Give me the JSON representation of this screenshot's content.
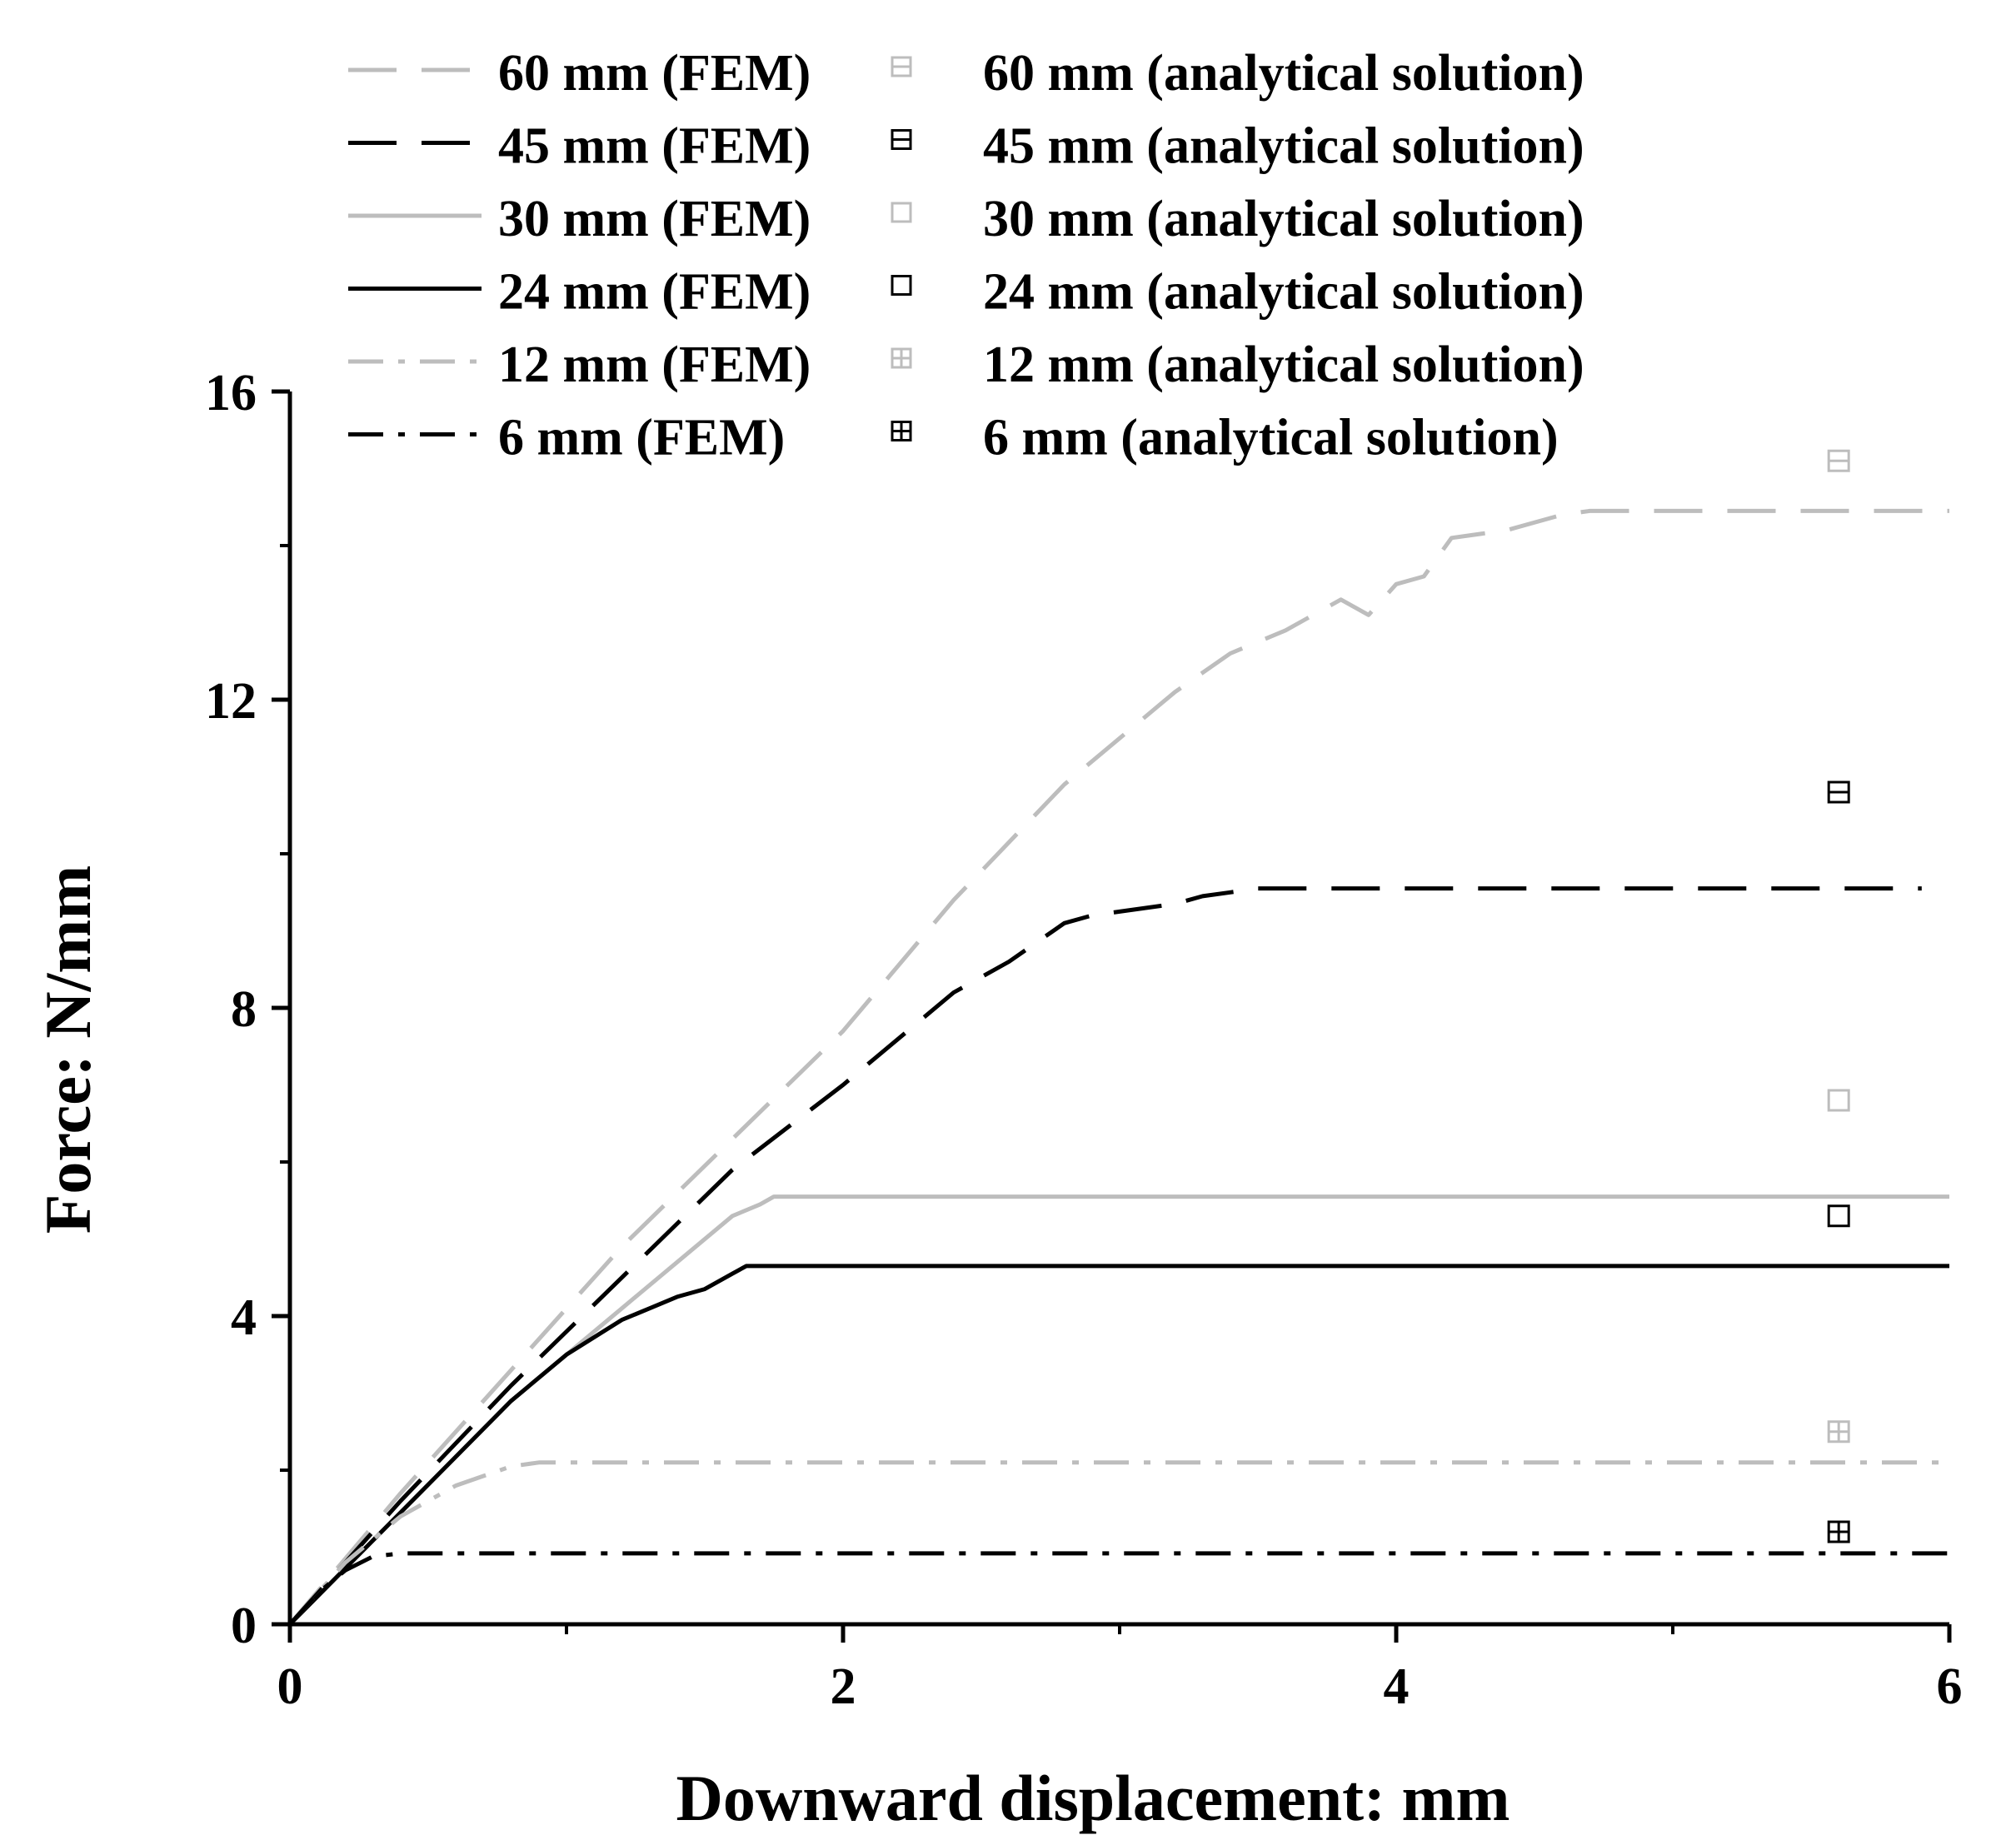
{
  "chart_data": {
    "type": "line",
    "title": "",
    "xlabel": "Downward displacement: mm",
    "ylabel": "Force: N/mm",
    "xlim": [
      0,
      6
    ],
    "ylim": [
      0,
      16
    ],
    "xticks": [
      0,
      2,
      4,
      6
    ],
    "xminor": [
      1,
      3,
      5
    ],
    "yticks": [
      0,
      4,
      8,
      12,
      16
    ],
    "yminor": [
      2,
      6,
      10,
      14
    ],
    "xtick_labels": [
      "0",
      "2",
      "4",
      "6"
    ],
    "ytick_labels": [
      "0",
      "4",
      "8",
      "12",
      "16"
    ],
    "legend_position": "top",
    "colors": {
      "gray": "#bdbdbd",
      "black": "#000000"
    },
    "series": [
      {
        "name": "60 mm (FEM)",
        "color": "gray",
        "style": "dash",
        "x": [
          0,
          0.4,
          0.8,
          1.2,
          1.6,
          2.0,
          2.4,
          2.8,
          3.0,
          3.2,
          3.4,
          3.6,
          3.8,
          3.9,
          4.0,
          4.1,
          4.2,
          4.4,
          4.6,
          4.7,
          6.0
        ],
        "y": [
          0,
          1.7,
          3.3,
          4.9,
          6.3,
          7.7,
          9.4,
          10.9,
          11.5,
          12.1,
          12.6,
          12.9,
          13.3,
          13.1,
          13.5,
          13.6,
          14.1,
          14.2,
          14.4,
          14.45,
          14.45
        ]
      },
      {
        "name": "45 mm (FEM)",
        "color": "black",
        "style": "dash",
        "x": [
          0,
          0.4,
          0.8,
          1.2,
          1.6,
          2.0,
          2.4,
          2.6,
          2.8,
          2.9,
          3.0,
          3.2,
          3.3,
          3.4,
          3.5,
          5.9
        ],
        "y": [
          0,
          1.6,
          3.1,
          4.5,
          5.9,
          7.0,
          8.2,
          8.6,
          9.1,
          9.2,
          9.25,
          9.35,
          9.45,
          9.5,
          9.55,
          9.55
        ]
      },
      {
        "name": "30 mm (FEM)",
        "color": "gray",
        "style": "solid",
        "x": [
          0,
          0.4,
          0.8,
          1.2,
          1.4,
          1.6,
          1.7,
          1.75,
          6.0
        ],
        "y": [
          0,
          1.45,
          2.9,
          4.1,
          4.7,
          5.3,
          5.45,
          5.55,
          5.55
        ]
      },
      {
        "name": "24 mm (FEM)",
        "color": "black",
        "style": "solid",
        "x": [
          0,
          0.4,
          0.8,
          1.0,
          1.2,
          1.3,
          1.4,
          1.5,
          1.6,
          1.65,
          6.0
        ],
        "y": [
          0,
          1.45,
          2.9,
          3.5,
          3.95,
          4.1,
          4.25,
          4.35,
          4.55,
          4.65,
          4.65
        ]
      },
      {
        "name": "12 mm (FEM)",
        "color": "gray",
        "style": "dashdot",
        "x": [
          0,
          0.2,
          0.4,
          0.6,
          0.8,
          0.9,
          6.0
        ],
        "y": [
          0,
          0.8,
          1.4,
          1.8,
          2.05,
          2.1,
          2.1
        ]
      },
      {
        "name": "6 mm (FEM)",
        "color": "black",
        "style": "dashdot",
        "x": [
          0,
          0.1,
          0.2,
          0.3,
          0.4,
          6.0
        ],
        "y": [
          0,
          0.4,
          0.7,
          0.88,
          0.92,
          0.92
        ]
      }
    ],
    "markers": [
      {
        "name": "60 mm (analytical solution)",
        "color": "gray",
        "symbol": "box-h",
        "x": 5.6,
        "y": 15.1
      },
      {
        "name": "45 mm (analytical solution)",
        "color": "black",
        "symbol": "box-h",
        "x": 5.6,
        "y": 10.8
      },
      {
        "name": "30 mm (analytical solution)",
        "color": "gray",
        "symbol": "box",
        "x": 5.6,
        "y": 6.8
      },
      {
        "name": "24 mm (analytical solution)",
        "color": "black",
        "symbol": "box",
        "x": 5.6,
        "y": 5.3
      },
      {
        "name": "12 mm (analytical solution)",
        "color": "gray",
        "symbol": "box-plus",
        "x": 5.6,
        "y": 2.5
      },
      {
        "name": "6 mm (analytical solution)",
        "color": "black",
        "symbol": "box-plus",
        "x": 5.6,
        "y": 1.2
      }
    ]
  }
}
